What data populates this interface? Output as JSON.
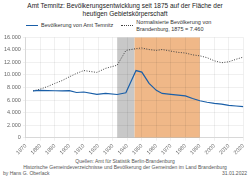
{
  "chart_data": {
    "type": "line",
    "title": "Amt Temnitz: Bevölkerungsentwicklung seit 1875 auf der Fläche der\nheutigen Gebietskörperschaft",
    "x": [
      1875,
      1880,
      1885,
      1890,
      1895,
      1900,
      1905,
      1910,
      1919,
      1925,
      1933,
      1939,
      1946,
      1950,
      1955,
      1960,
      1964,
      1970,
      1975,
      1980,
      1985,
      1990,
      1995,
      2000,
      2005,
      2010,
      2015,
      2020
    ],
    "series": [
      {
        "name": "Bevölkerung von Amt Temnitz",
        "color": "#1a5fa8",
        "line_style": "solid",
        "values": [
          7460,
          7540,
          7500,
          7480,
          7460,
          7500,
          7200,
          7280,
          6900,
          7060,
          6880,
          7150,
          10700,
          10450,
          8650,
          7550,
          7050,
          6900,
          6780,
          6650,
          6250,
          5880,
          5650,
          5480,
          5350,
          5150,
          5050,
          4950
        ]
      },
      {
        "name": "Normalisierte Bevölkerung von\nBrandenburg, 1875 = 7.460",
        "color": "#444444",
        "line_style": "dotted",
        "values": [
          7460,
          7750,
          8150,
          8650,
          9100,
          9700,
          10250,
          10700,
          10400,
          11050,
          11550,
          13900,
          14200,
          14300,
          14050,
          13900,
          14050,
          13800,
          13600,
          13500,
          13200,
          13050,
          12750,
          12250,
          11950,
          12100,
          12500,
          12850
        ]
      }
    ],
    "spans": [
      {
        "start": 1933,
        "end": 1945,
        "color": "#c8c8c8"
      },
      {
        "start": 1945,
        "end": 1990,
        "color": "#f0b888"
      }
    ],
    "xlim": [
      1870,
      2020
    ],
    "xticks": [
      1870,
      1880,
      1890,
      1900,
      1910,
      1920,
      1930,
      1940,
      1950,
      1960,
      1970,
      1980,
      1990,
      2000,
      2010,
      2020
    ],
    "ylim": [
      0,
      16000
    ],
    "yticks": [
      0,
      {
        "value": 2000,
        "label": "2.000"
      },
      {
        "value": 4000,
        "label": "4.000"
      },
      {
        "value": 6000,
        "label": "6.000"
      },
      {
        "value": 8000,
        "label": "8.000"
      },
      {
        "value": 10000,
        "label": "10.000"
      },
      {
        "value": 12000,
        "label": "12.000"
      },
      {
        "value": 14000,
        "label": "14.000"
      },
      {
        "value": 16000,
        "label": "16.000"
      }
    ],
    "grid": true,
    "legend": "upper left",
    "annotations": [
      "Quellen: Amt für Statistik Berlin-Brandenburg",
      "Historische Gemeindeverzeichnisse und Bevölkerung der Gemeinden im Land Brandenburg",
      "by Hans G. Oberlack",
      "31.01.2022"
    ]
  }
}
